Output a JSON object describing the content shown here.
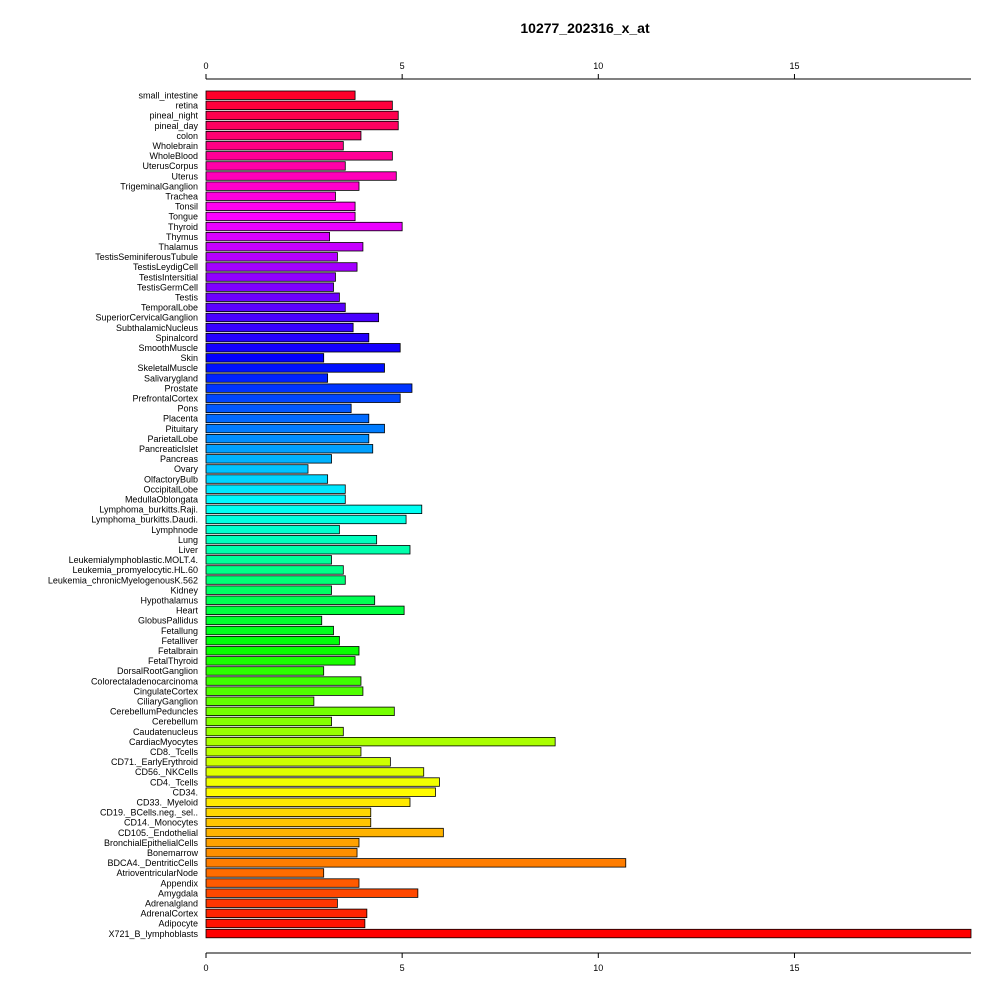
{
  "chart_data": {
    "type": "bar",
    "orientation": "horizontal",
    "title": "10277_202316_x_at",
    "xlabel": "",
    "ylabel": "",
    "xlim": [
      0,
      19.5
    ],
    "xticks": [
      0,
      5,
      10,
      15
    ],
    "grid": false,
    "legend": "none",
    "categories": [
      "small_intestine",
      "retina",
      "pineal_night",
      "pineal_day",
      "colon",
      "Wholebrain",
      "WholeBlood",
      "UterusCorpus",
      "Uterus",
      "TrigeminalGanglion",
      "Trachea",
      "Tonsil",
      "Tongue",
      "Thyroid",
      "Thymus",
      "Thalamus",
      "TestisSeminiferousTubule",
      "TestisLeydigCell",
      "TestisIntersitial",
      "TestisGermCell",
      "Testis",
      "TemporalLobe",
      "SuperiorCervicalGanglion",
      "SubthalamicNucleus",
      "Spinalcord",
      "SmoothMuscle",
      "Skin",
      "SkeletalMuscle",
      "Salivarygland",
      "Prostate",
      "PrefrontalCortex",
      "Pons",
      "Placenta",
      "Pituitary",
      "ParietalLobe",
      "PancreaticIslet",
      "Pancreas",
      "Ovary",
      "OlfactoryBulb",
      "OccipitalLobe",
      "MedullaOblongata",
      "Lymphoma_burkitts.Raji.",
      "Lymphoma_burkitts.Daudi.",
      "Lymphnode",
      "Lung",
      "Liver",
      "Leukemialymphoblastic.MOLT.4.",
      "Leukemia_promyelocytic.HL.60",
      "Leukemia_chronicMyelogenousK.562",
      "Kidney",
      "Hypothalamus",
      "Heart",
      "GlobusPallidus",
      "Fetallung",
      "Fetalliver",
      "Fetalbrain",
      "FetalThyroid",
      "DorsalRootGanglion",
      "Colorectaladenocarcinoma",
      "CingulateCortex",
      "CiliaryGanglion",
      "CerebellumPeduncles",
      "Cerebellum",
      "Caudatenucleus",
      "CardiacMyocytes",
      "CD8._Tcells",
      "CD71._EarlyErythroid",
      "CD56._NKCells",
      "CD4._Tcells",
      "CD34.",
      "CD33._Myeloid",
      "CD19._BCells.neg._sel..",
      "CD14._Monocytes",
      "CD105._Endothelial",
      "BronchialEpithelialCells",
      "Bonemarrow",
      "BDCA4._DentriticCells",
      "AtrioventricularNode",
      "Appendix",
      "Amygdala",
      "Adrenalgland",
      "AdrenalCortex",
      "Adipocyte",
      "X721_B_lymphoblasts"
    ],
    "values": [
      3.8,
      4.75,
      4.9,
      4.9,
      3.95,
      3.5,
      4.75,
      3.55,
      4.85,
      3.9,
      3.3,
      3.8,
      3.8,
      5.0,
      3.15,
      4.0,
      3.35,
      3.85,
      3.3,
      3.25,
      3.4,
      3.55,
      4.4,
      3.75,
      4.15,
      4.95,
      3.0,
      4.55,
      3.1,
      5.25,
      4.95,
      3.7,
      4.15,
      4.55,
      4.15,
      4.25,
      3.2,
      2.6,
      3.1,
      3.55,
      3.55,
      5.5,
      5.1,
      3.4,
      4.35,
      5.2,
      3.2,
      3.5,
      3.55,
      3.2,
      4.3,
      5.05,
      2.95,
      3.25,
      3.4,
      3.9,
      3.8,
      3.0,
      3.95,
      4.0,
      2.75,
      4.8,
      3.2,
      3.5,
      8.9,
      3.95,
      4.7,
      5.55,
      5.95,
      5.85,
      5.2,
      4.2,
      4.2,
      6.05,
      3.9,
      3.85,
      10.7,
      3.0,
      3.9,
      5.4,
      3.35,
      4.1,
      4.05,
      19.5
    ]
  }
}
